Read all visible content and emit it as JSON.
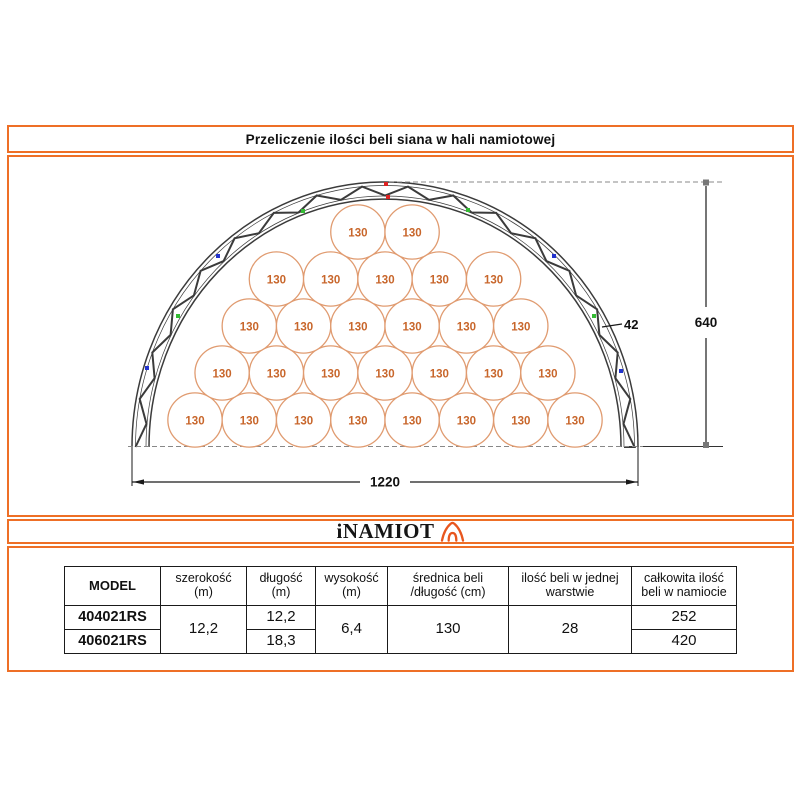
{
  "title": "Przeliczenie ilości beli siana w hali namiotowej",
  "logo": {
    "brand": "iNAMIOT",
    "icon": "tent-icon"
  },
  "colors": {
    "accent_orange": "#EE6F26",
    "bale_stroke": "#E09B70",
    "bale_text": "#C8662B",
    "truss": "#3B3B3B",
    "dim_line": "#1A1A1A",
    "guide_gray": "#888888",
    "marker_red": "#DD2222",
    "marker_green": "#33BB33",
    "marker_blue": "#2233CC"
  },
  "diagram": {
    "bale_label": "130",
    "bale_rows_bottom_up": [
      8,
      7,
      6,
      5,
      2
    ],
    "dim_width": "1220",
    "dim_height": "640",
    "dim_truss_depth": "42"
  },
  "table": {
    "headers": [
      {
        "lines": [
          "MODEL"
        ]
      },
      {
        "lines": [
          "szerokość",
          "(m)"
        ]
      },
      {
        "lines": [
          "długość",
          "(m)"
        ]
      },
      {
        "lines": [
          "wysokość",
          "(m)"
        ]
      },
      {
        "lines": [
          "średnica beli",
          "/długość (cm)"
        ]
      },
      {
        "lines": [
          "ilość beli w jednej",
          "warstwie"
        ]
      },
      {
        "lines": [
          "całkowita ilość",
          "beli w namiocie"
        ]
      }
    ],
    "shared": {
      "szerokosc": "12,2",
      "wysokosc": "6,4",
      "srednica": "130",
      "ilosc_w_warstwie": "28"
    },
    "rows": [
      {
        "model": "404021RS",
        "dlugosc": "12,2",
        "calkowita": "252"
      },
      {
        "model": "406021RS",
        "dlugosc": "18,3",
        "calkowita": "420"
      }
    ]
  }
}
